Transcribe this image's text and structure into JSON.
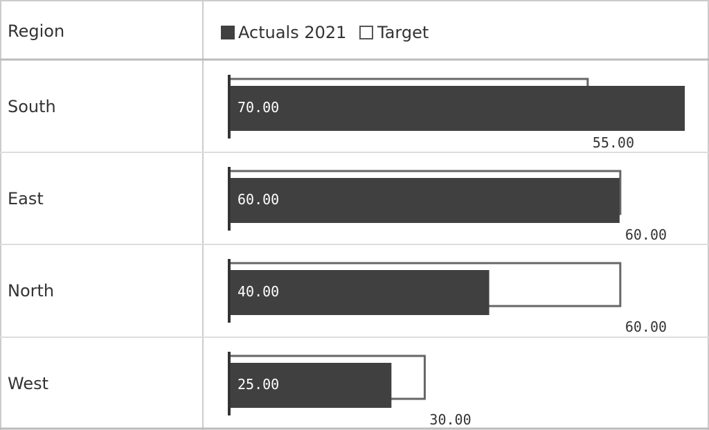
{
  "header": {
    "region_label": "Region",
    "legend": [
      {
        "name": "Actuals 2021",
        "style": "filled"
      },
      {
        "name": "Target",
        "style": "outline"
      }
    ]
  },
  "colors": {
    "actual_fill": "#404040",
    "target_stroke": "#666666",
    "grid_line": "#cccccc",
    "text": "#333333"
  },
  "chart_data": {
    "type": "bar",
    "orientation": "horizontal",
    "categories": [
      "South",
      "East",
      "North",
      "West"
    ],
    "series": [
      {
        "name": "Actuals 2021",
        "values": [
          70,
          60,
          40,
          25
        ],
        "labels": [
          "70.00",
          "60.00",
          "40.00",
          "25.00"
        ]
      },
      {
        "name": "Target",
        "values": [
          55,
          60,
          60,
          30
        ],
        "labels": [
          "55.00",
          "60.00",
          "60.00",
          "30.00"
        ]
      }
    ],
    "xlim": [
      0,
      70
    ],
    "grid": true,
    "legend_position": "top"
  }
}
